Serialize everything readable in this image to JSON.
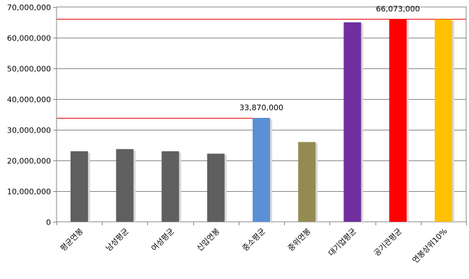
{
  "chart_data": {
    "type": "bar",
    "categories": [
      "평균연봉",
      "남성평균",
      "여성평균",
      "신입연봉",
      "중소평균",
      "중위연봉",
      "대기업평균",
      "공기관평균",
      "연봉상위10%"
    ],
    "values": [
      23000000,
      23700000,
      23000000,
      22200000,
      33870000,
      26000000,
      65000000,
      66073000,
      66000000
    ],
    "colors": [
      "#5f5f5f",
      "#5f5f5f",
      "#5f5f5f",
      "#5f5f5f",
      "#5b8fd6",
      "#938b52",
      "#7030a0",
      "#ff0000",
      "#ffc000"
    ],
    "title": "",
    "xlabel": "",
    "ylabel": "",
    "ylim": [
      0,
      70000000
    ],
    "yticks": [
      0,
      10000000,
      20000000,
      30000000,
      40000000,
      50000000,
      60000000,
      70000000
    ],
    "ytick_labels": [
      "0",
      "10,000,000",
      "20,000,000",
      "30,000,000",
      "40,000,000",
      "50,000,000",
      "60,000,000",
      "70,000,000"
    ],
    "grid": true,
    "legend": "none",
    "data_labels": [
      {
        "category": "중소평균",
        "text": "33,870,000"
      },
      {
        "category": "공기관평균",
        "text": "66,073,000"
      }
    ],
    "reference_lines": [
      {
        "value": 33870000,
        "color": "#e00000",
        "to_category": "중소평균"
      },
      {
        "value": 66073000,
        "color": "#e00000",
        "to_category": "end"
      }
    ]
  }
}
